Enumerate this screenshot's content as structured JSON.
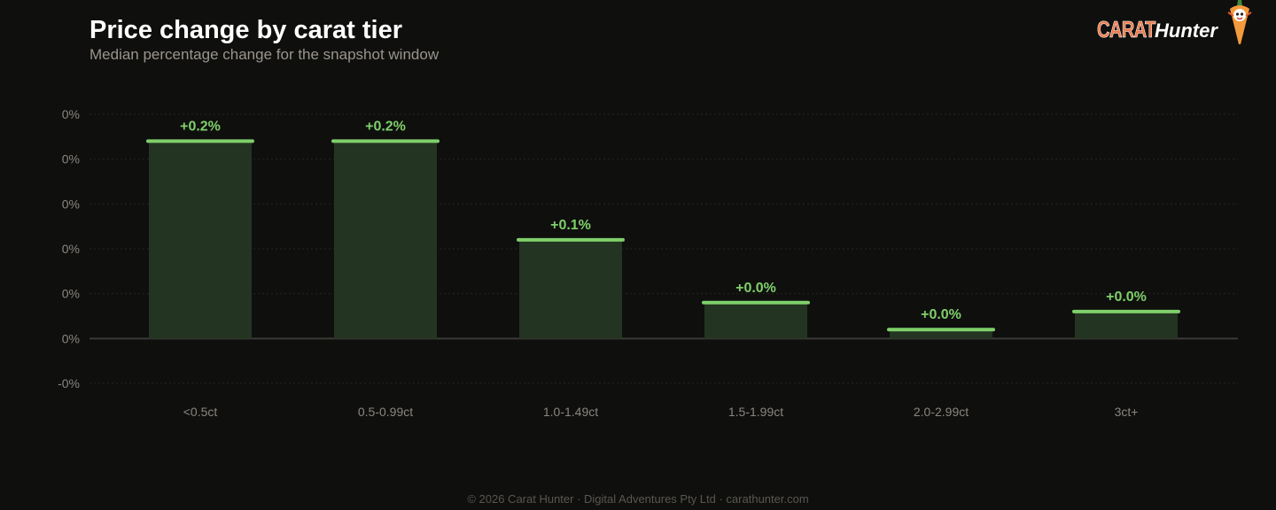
{
  "header": {
    "title": "Price change by carat tier",
    "subtitle": "Median percentage change for the snapshot window"
  },
  "brand": {
    "carat": "CARAT",
    "hunter": "Hunter",
    "mascot_icon": "carrot-mascot-icon"
  },
  "footer": {
    "text": "© 2026 Carat Hunter · Digital Adventures Pty Ltd · carathunter.com"
  },
  "colors": {
    "background": "#0f0f0e",
    "bar_fill": "#243422",
    "bar_cap": "#7fd06a",
    "label": "#7fd06a",
    "axis_text": "#8a8680",
    "gridline": "#262624",
    "baseline": "#3a3936"
  },
  "chart_data": {
    "type": "bar",
    "title": "Price change by carat tier",
    "subtitle": "Median percentage change for the snapshot window",
    "xlabel": "",
    "ylabel": "",
    "categories": [
      "<0.5ct",
      "0.5-0.99ct",
      "1.0-1.49ct",
      "1.5-1.99ct",
      "2.0-2.99ct",
      "3ct+"
    ],
    "values": [
      0.22,
      0.22,
      0.11,
      0.04,
      0.01,
      0.03
    ],
    "value_labels": [
      "+0.2%",
      "+0.2%",
      "+0.1%",
      "+0.0%",
      "+0.0%",
      "+0.0%"
    ],
    "ylim": [
      -0.05,
      0.25
    ],
    "yticks": [
      0.25,
      0.2,
      0.15,
      0.1,
      0.05,
      0,
      -0.05
    ],
    "ytick_labels": [
      "0%",
      "0%",
      "0%",
      "0%",
      "0%",
      "0%",
      "-0%"
    ],
    "grid": true,
    "legend": "none"
  }
}
